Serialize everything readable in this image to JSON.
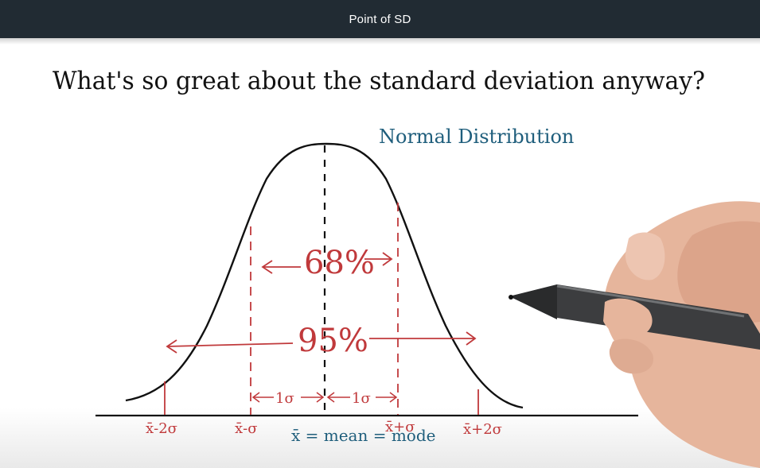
{
  "window": {
    "title": "Point of SD"
  },
  "lesson": {
    "question": "What's so great about the standard deviation anyway?",
    "chart_title": "Normal Distribution",
    "band_68": "68%",
    "band_95": "95%",
    "one_sd_left": "1σ",
    "one_sd_right": "1σ",
    "axis_labels": [
      "x̄-2σ",
      "x̄-σ",
      "x̄+σ",
      "x̄+2σ"
    ],
    "mean_caption": "x̄ = mean = mode"
  },
  "colors": {
    "topbar": "#212b33",
    "ink_black": "#111111",
    "ink_red": "#c0393b",
    "ink_blue": "#1f5e7c"
  },
  "icons": [
    "pen-in-hand-illustration"
  ]
}
